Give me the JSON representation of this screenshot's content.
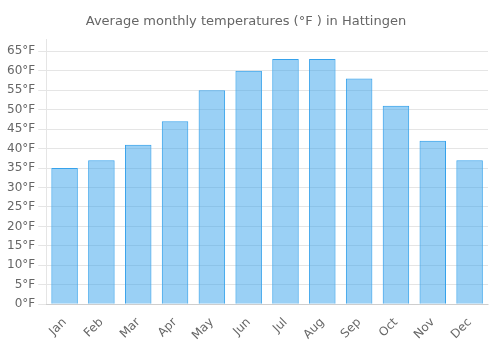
{
  "chart_data": {
    "type": "bar",
    "title": "Average monthly temperatures (°F ) in Hattingen",
    "categories": [
      "Jan",
      "Feb",
      "Mar",
      "Apr",
      "May",
      "Jun",
      "Jul",
      "Aug",
      "Sep",
      "Oct",
      "Nov",
      "Dec"
    ],
    "values": [
      35,
      37,
      41,
      47,
      55,
      60,
      63,
      63,
      58,
      51,
      42,
      37
    ],
    "ylim": [
      0,
      68
    ],
    "yticks": [
      {
        "value": 0,
        "label": "0°F"
      },
      {
        "value": 5,
        "label": "5°F"
      },
      {
        "value": 10,
        "label": "10°F"
      },
      {
        "value": 15,
        "label": "15°F"
      },
      {
        "value": 20,
        "label": "20°F"
      },
      {
        "value": 25,
        "label": "25°F"
      },
      {
        "value": 30,
        "label": "30°F"
      },
      {
        "value": 35,
        "label": "35°F"
      },
      {
        "value": 40,
        "label": "40°F"
      },
      {
        "value": 45,
        "label": "45°F"
      },
      {
        "value": 50,
        "label": "50°F"
      },
      {
        "value": 55,
        "label": "55°F"
      },
      {
        "value": 60,
        "label": "60°F"
      },
      {
        "value": 65,
        "label": "65°F"
      }
    ],
    "grid": true
  }
}
